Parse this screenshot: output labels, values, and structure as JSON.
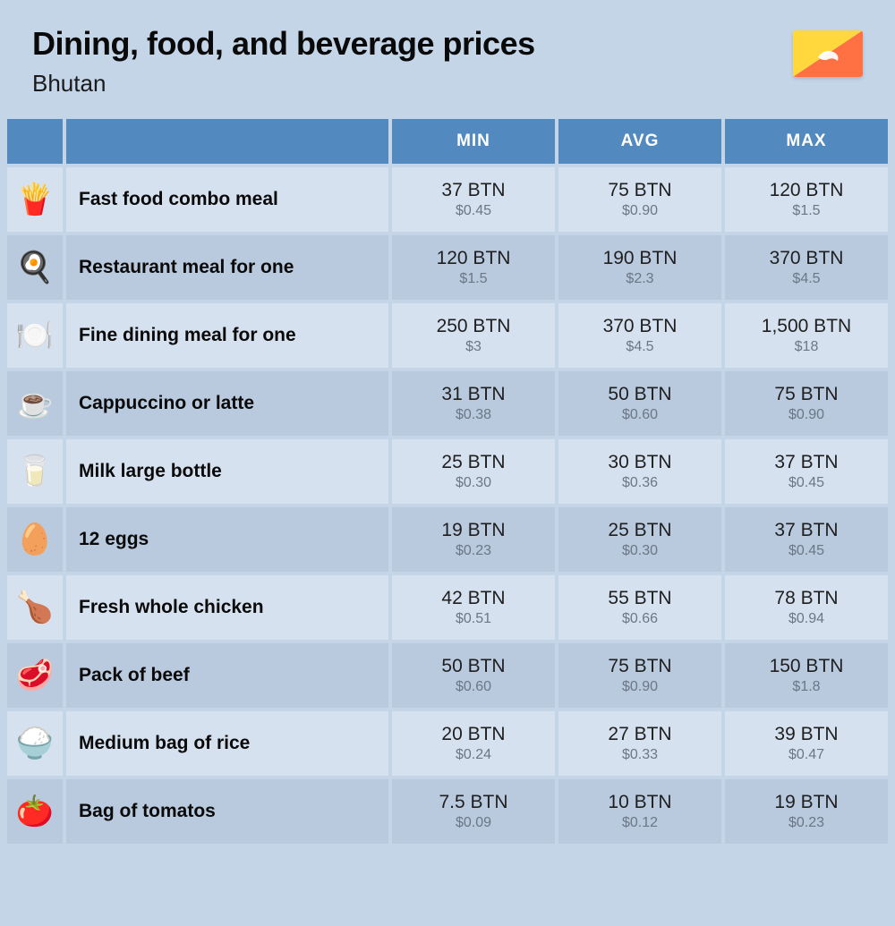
{
  "header": {
    "title": "Dining, food, and beverage prices",
    "subtitle": "Bhutan"
  },
  "flag": {
    "top_color": "#ffd83d",
    "bottom_color": "#ff7043",
    "emblem_color": "#ffffff"
  },
  "columns": {
    "min": "MIN",
    "avg": "AVG",
    "max": "MAX"
  },
  "styling": {
    "page_bg": "#c5d5e8",
    "header_bg": "#5289be",
    "header_text": "#ffffff",
    "row_odd_bg": "#d6e1ef",
    "row_even_bg": "#b9c9de",
    "label_color": "#0a0a0a",
    "price_main_color": "#1f1f1f",
    "price_sub_color": "#6b7785",
    "title_fontsize": 36,
    "subtitle_fontsize": 26,
    "header_fontsize": 19,
    "label_fontsize": 21,
    "price_main_fontsize": 21,
    "price_sub_fontsize": 16
  },
  "items": [
    {
      "icon": "🍟",
      "label": "Fast food combo meal",
      "min_btn": "37 BTN",
      "min_usd": "$0.45",
      "avg_btn": "75 BTN",
      "avg_usd": "$0.90",
      "max_btn": "120 BTN",
      "max_usd": "$1.5"
    },
    {
      "icon": "🍳",
      "label": "Restaurant meal for one",
      "min_btn": "120 BTN",
      "min_usd": "$1.5",
      "avg_btn": "190 BTN",
      "avg_usd": "$2.3",
      "max_btn": "370 BTN",
      "max_usd": "$4.5"
    },
    {
      "icon": "🍽️",
      "label": "Fine dining meal for one",
      "min_btn": "250 BTN",
      "min_usd": "$3",
      "avg_btn": "370 BTN",
      "avg_usd": "$4.5",
      "max_btn": "1,500 BTN",
      "max_usd": "$18"
    },
    {
      "icon": "☕",
      "label": "Cappuccino or latte",
      "min_btn": "31 BTN",
      "min_usd": "$0.38",
      "avg_btn": "50 BTN",
      "avg_usd": "$0.60",
      "max_btn": "75 BTN",
      "max_usd": "$0.90"
    },
    {
      "icon": "🥛",
      "label": "Milk large bottle",
      "min_btn": "25 BTN",
      "min_usd": "$0.30",
      "avg_btn": "30 BTN",
      "avg_usd": "$0.36",
      "max_btn": "37 BTN",
      "max_usd": "$0.45"
    },
    {
      "icon": "🥚",
      "label": "12 eggs",
      "min_btn": "19 BTN",
      "min_usd": "$0.23",
      "avg_btn": "25 BTN",
      "avg_usd": "$0.30",
      "max_btn": "37 BTN",
      "max_usd": "$0.45"
    },
    {
      "icon": "🍗",
      "label": "Fresh whole chicken",
      "min_btn": "42 BTN",
      "min_usd": "$0.51",
      "avg_btn": "55 BTN",
      "avg_usd": "$0.66",
      "max_btn": "78 BTN",
      "max_usd": "$0.94"
    },
    {
      "icon": "🥩",
      "label": "Pack of beef",
      "min_btn": "50 BTN",
      "min_usd": "$0.60",
      "avg_btn": "75 BTN",
      "avg_usd": "$0.90",
      "max_btn": "150 BTN",
      "max_usd": "$1.8"
    },
    {
      "icon": "🍚",
      "label": "Medium bag of rice",
      "min_btn": "20 BTN",
      "min_usd": "$0.24",
      "avg_btn": "27 BTN",
      "avg_usd": "$0.33",
      "max_btn": "39 BTN",
      "max_usd": "$0.47"
    },
    {
      "icon": "🍅",
      "label": "Bag of tomatos",
      "min_btn": "7.5 BTN",
      "min_usd": "$0.09",
      "avg_btn": "10 BTN",
      "avg_usd": "$0.12",
      "max_btn": "19 BTN",
      "max_usd": "$0.23"
    }
  ]
}
